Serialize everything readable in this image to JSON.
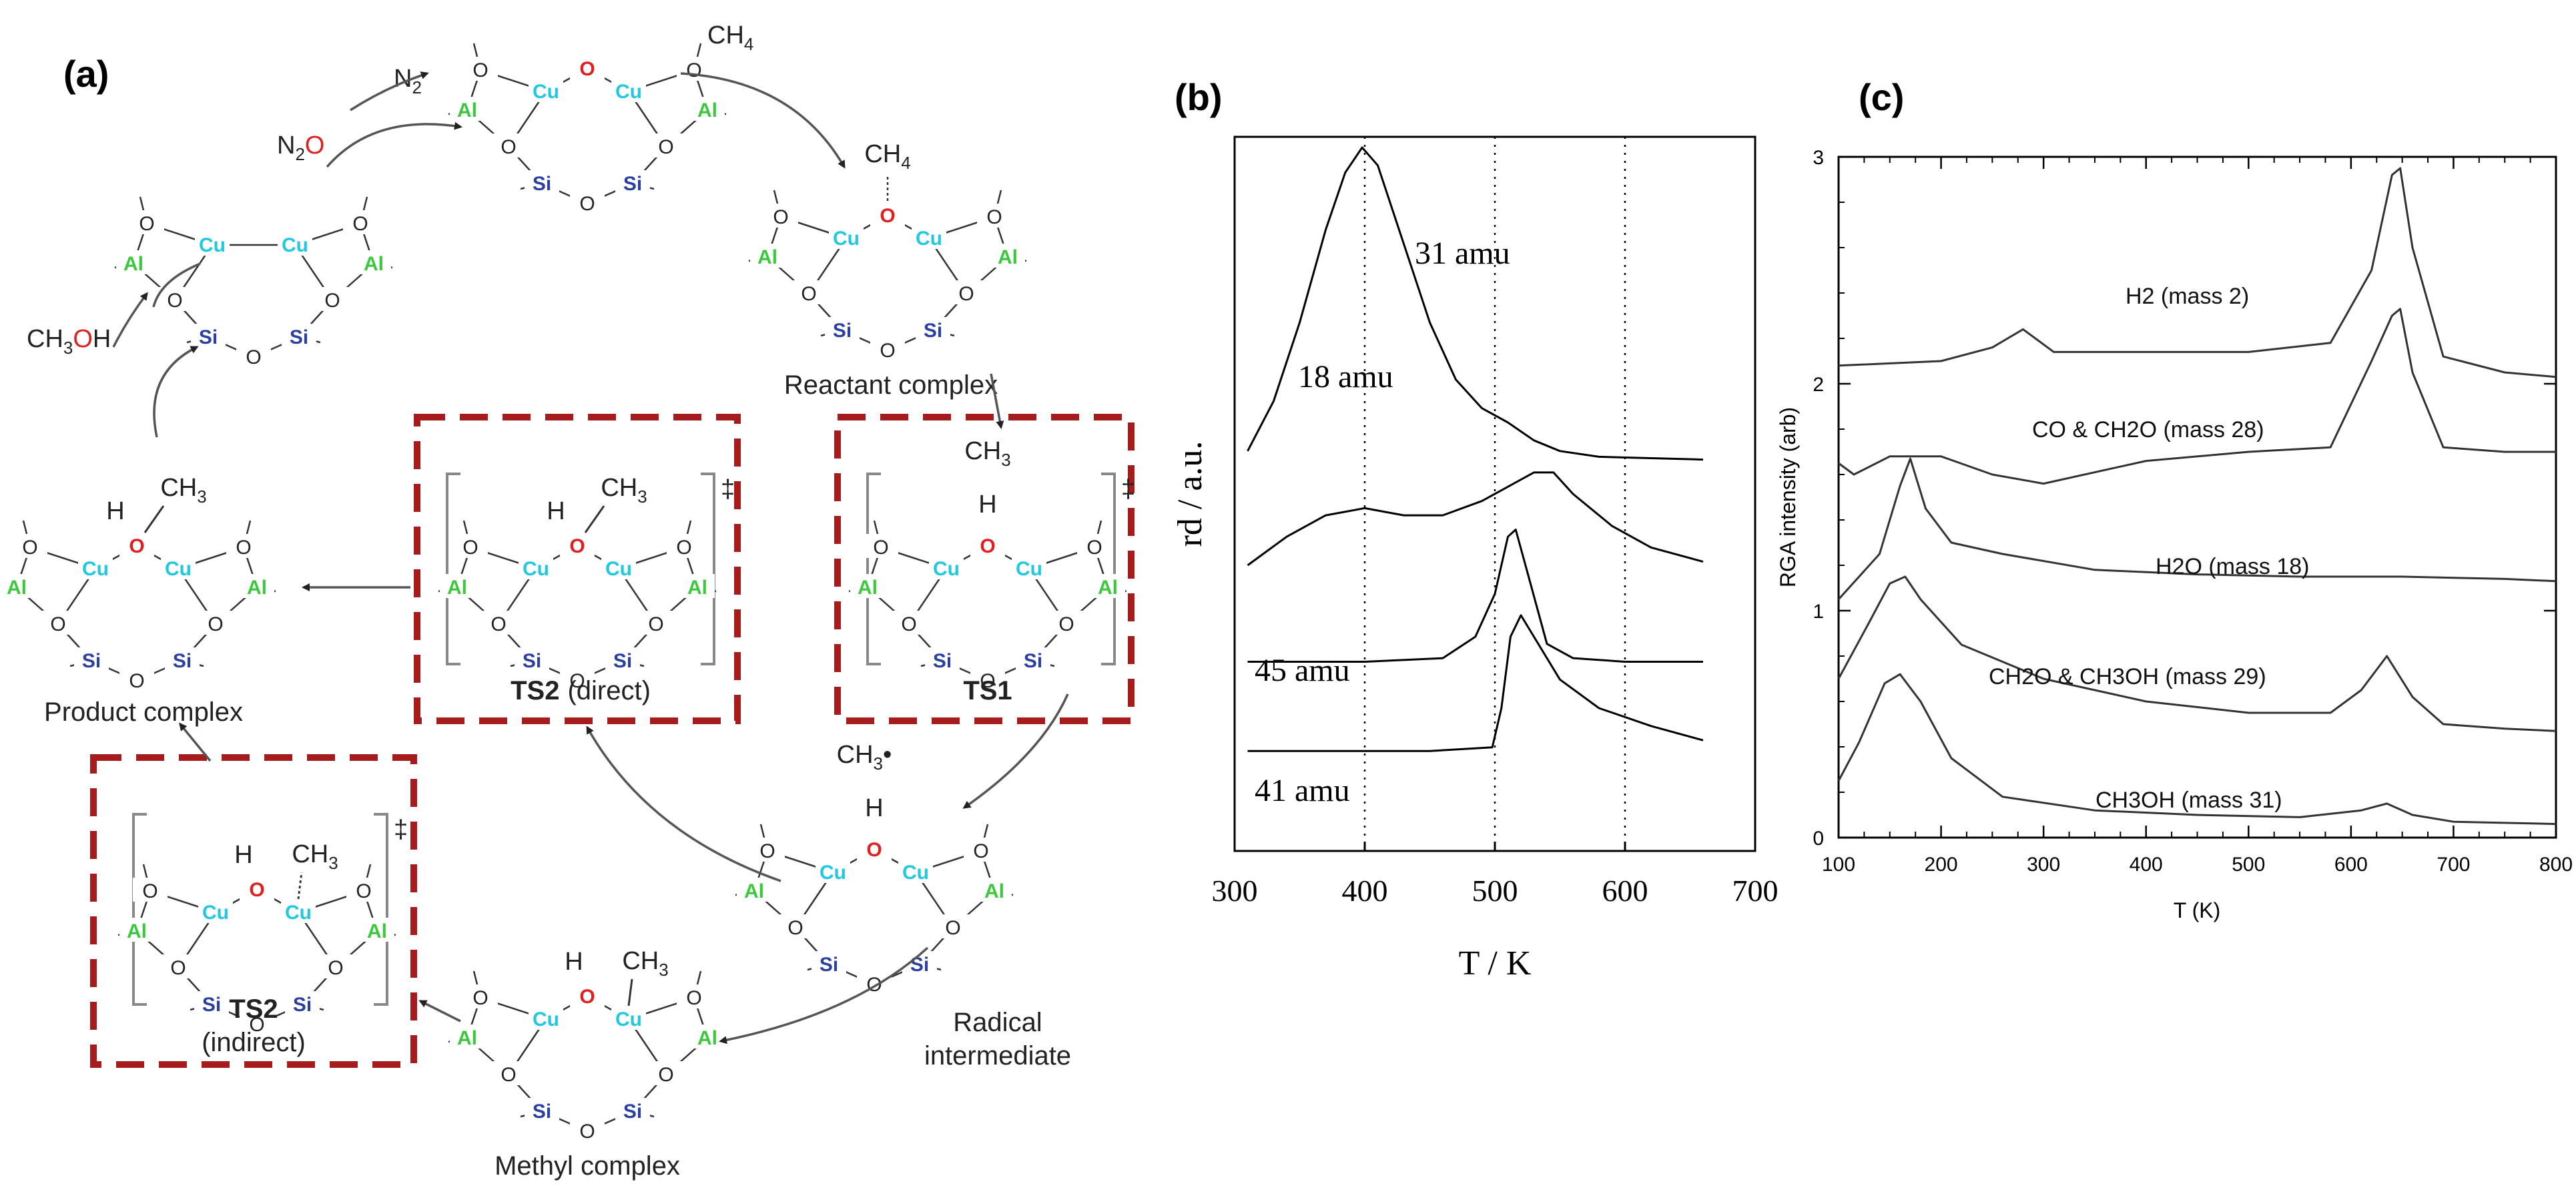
{
  "figure": {
    "panels": {
      "a": "(a)",
      "b": "(b)",
      "c": "(c)"
    }
  },
  "diagram": {
    "reagents": {
      "n2o": {
        "base": "N",
        "sub": "2",
        "ox": "O"
      },
      "n2": {
        "base": "N",
        "sub": "2"
      },
      "ch4": {
        "base": "CH",
        "sub": "4"
      },
      "ch3oh": {
        "pre": "CH",
        "sub": "3",
        "ox": "O",
        "post": "H"
      }
    },
    "species": [
      {
        "id": "bare",
        "caption": ""
      },
      {
        "id": "oxo",
        "caption": ""
      },
      {
        "id": "reactant",
        "caption": "Reactant complex",
        "top_label": "CH4"
      },
      {
        "id": "ts1",
        "caption": "TS1",
        "top_label": "CH3",
        "h_label": "H"
      },
      {
        "id": "radical",
        "caption_line1": "Radical",
        "caption_line2": "intermediate",
        "top_label": "CH3•",
        "h_label": "H"
      },
      {
        "id": "methyl",
        "caption": "Methyl complex",
        "top_label": "CH3",
        "h_label": "H"
      },
      {
        "id": "ts2i",
        "caption_bold": "TS2",
        "caption_rest": "(indirect)",
        "top_label": "CH3",
        "h_label": "H"
      },
      {
        "id": "ts2d",
        "caption_bold": "TS2",
        "caption_rest": "(direct)",
        "top_label": "CH3",
        "h_label": "H"
      },
      {
        "id": "product",
        "caption": "Product complex",
        "top_label": "CH3",
        "h_label": "H"
      }
    ],
    "ring_atoms": {
      "al": "Al",
      "cu": "Cu",
      "si": "Si",
      "o": "O"
    },
    "ts_mark": "‡",
    "colors": {
      "al": "#3cc83c",
      "cu": "#22c8e0",
      "si": "#2a3fa0",
      "o_bridge": "#e02020",
      "ts_box": "#a61b1b"
    }
  },
  "chart_data": [
    {
      "type": "line",
      "xlabel": "T / K",
      "ylabel": "rd / a.u.",
      "xlim": [
        300,
        700
      ],
      "xticks": [
        300,
        400,
        500,
        600,
        700
      ],
      "yticks": [],
      "vlines": [
        400,
        500,
        600
      ],
      "series": [
        {
          "name": "31 amu",
          "x": [
            310,
            330,
            350,
            370,
            385,
            398,
            410,
            430,
            450,
            470,
            490,
            510,
            530,
            550,
            580,
            620,
            660
          ],
          "y": [
            0.56,
            0.63,
            0.74,
            0.87,
            0.95,
            0.985,
            0.96,
            0.85,
            0.74,
            0.66,
            0.62,
            0.6,
            0.575,
            0.56,
            0.552,
            0.55,
            0.548
          ]
        },
        {
          "name": "18 amu",
          "x": [
            310,
            340,
            370,
            400,
            430,
            460,
            490,
            510,
            530,
            545,
            560,
            590,
            620,
            660
          ],
          "y": [
            0.4,
            0.44,
            0.47,
            0.48,
            0.47,
            0.47,
            0.49,
            0.51,
            0.53,
            0.53,
            0.5,
            0.455,
            0.425,
            0.405
          ]
        },
        {
          "name": "45 amu",
          "x": [
            310,
            400,
            460,
            485,
            500,
            510,
            516,
            525,
            540,
            560,
            600,
            660
          ],
          "y": [
            0.265,
            0.265,
            0.27,
            0.3,
            0.36,
            0.44,
            0.45,
            0.39,
            0.29,
            0.27,
            0.265,
            0.265
          ]
        },
        {
          "name": "41 amu",
          "x": [
            310,
            450,
            498,
            505,
            512,
            520,
            530,
            550,
            580,
            620,
            660
          ],
          "y": [
            0.14,
            0.14,
            0.145,
            0.2,
            0.3,
            0.33,
            0.3,
            0.24,
            0.2,
            0.175,
            0.155
          ]
        }
      ]
    },
    {
      "type": "line",
      "xlabel": "T (K)",
      "ylabel": "RGA intensity (arb)",
      "xlim": [
        100,
        800
      ],
      "ylim": [
        0,
        3
      ],
      "xticks": [
        100,
        200,
        300,
        400,
        500,
        600,
        700,
        800
      ],
      "yticks": [
        0,
        1,
        2,
        3
      ],
      "series": [
        {
          "name": "H2 (mass 2)",
          "x": [
            100,
            200,
            250,
            280,
            310,
            400,
            500,
            580,
            620,
            640,
            648,
            660,
            690,
            750,
            800
          ],
          "y": [
            2.08,
            2.1,
            2.16,
            2.24,
            2.14,
            2.14,
            2.14,
            2.18,
            2.5,
            2.92,
            2.95,
            2.6,
            2.12,
            2.05,
            2.03
          ]
        },
        {
          "name": "CO & CH2O (mass 28)",
          "x": [
            100,
            115,
            150,
            200,
            250,
            300,
            400,
            500,
            580,
            620,
            640,
            648,
            660,
            690,
            750,
            800
          ],
          "y": [
            1.65,
            1.6,
            1.68,
            1.68,
            1.6,
            1.56,
            1.66,
            1.7,
            1.72,
            2.1,
            2.3,
            2.33,
            2.05,
            1.72,
            1.7,
            1.7
          ]
        },
        {
          "name": "H2O (mass 18)",
          "x": [
            100,
            140,
            160,
            170,
            185,
            210,
            260,
            350,
            450,
            550,
            650,
            750,
            800
          ],
          "y": [
            1.05,
            1.25,
            1.55,
            1.67,
            1.45,
            1.3,
            1.25,
            1.18,
            1.16,
            1.15,
            1.15,
            1.14,
            1.13
          ]
        },
        {
          "name": "CH2O & CH3OH (mass 29)",
          "x": [
            100,
            130,
            150,
            165,
            180,
            220,
            300,
            400,
            500,
            580,
            610,
            635,
            660,
            690,
            750,
            800
          ],
          "y": [
            0.7,
            0.95,
            1.12,
            1.15,
            1.05,
            0.85,
            0.7,
            0.6,
            0.55,
            0.55,
            0.65,
            0.8,
            0.62,
            0.5,
            0.48,
            0.47
          ]
        },
        {
          "name": "CH3OH (mass 31)",
          "x": [
            100,
            120,
            145,
            160,
            180,
            210,
            260,
            350,
            450,
            550,
            610,
            635,
            660,
            700,
            800
          ],
          "y": [
            0.25,
            0.42,
            0.68,
            0.72,
            0.6,
            0.35,
            0.18,
            0.12,
            0.1,
            0.09,
            0.12,
            0.15,
            0.1,
            0.07,
            0.06
          ]
        }
      ]
    }
  ]
}
